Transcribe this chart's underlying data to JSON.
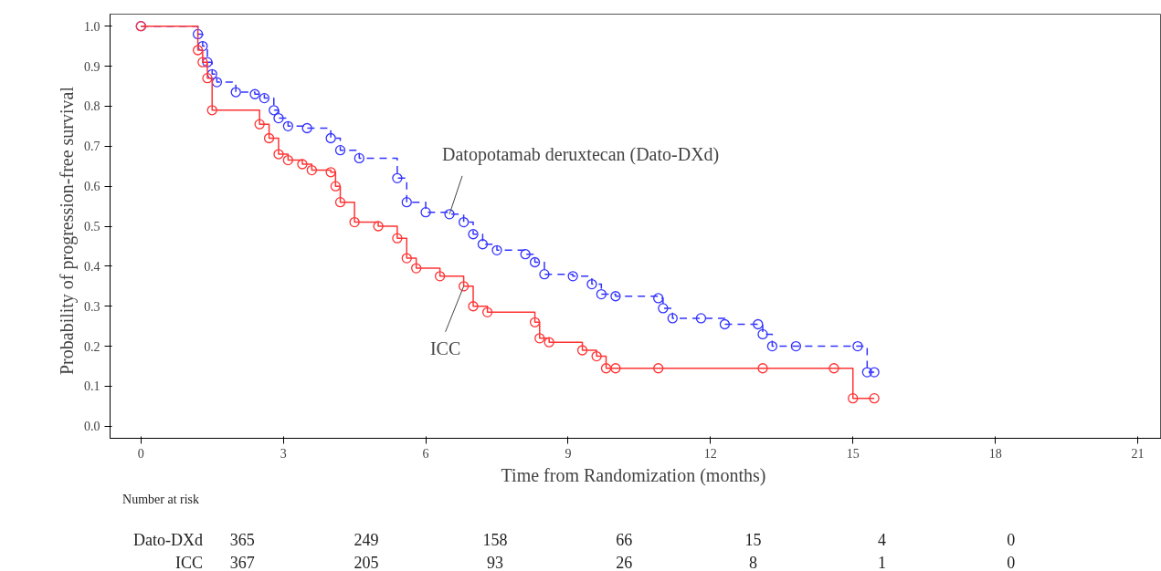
{
  "chart_data": {
    "type": "step",
    "xlabel": "Time from Randomization  (months)",
    "ylabel": "Probability  of progression-free  survival",
    "xlim": [
      -0.65,
      21.5
    ],
    "ylim": [
      -0.03,
      1.03
    ],
    "xticks": [
      0,
      3,
      6,
      9,
      12,
      15,
      18,
      21
    ],
    "yticks": [
      {
        "value": 0,
        "label": "0.0"
      },
      {
        "value": 0.1,
        "label": "0.1"
      },
      {
        "value": 0.2,
        "label": "0.2"
      },
      {
        "value": 0.3,
        "label": "0.3"
      },
      {
        "value": 0.4,
        "label": "0.4"
      },
      {
        "value": 0.5,
        "label": "0.5"
      },
      {
        "value": 0.6,
        "label": "0.6"
      },
      {
        "value": 0.7,
        "label": "0.7"
      },
      {
        "value": 0.8,
        "label": "0.8"
      },
      {
        "value": 0.9,
        "label": "0.9"
      },
      {
        "value": 1,
        "label": "1.0"
      }
    ],
    "marker": "circle",
    "grid": false,
    "series": [
      {
        "name": "Datopotamab deruxtecan (Dato-DXd)",
        "color": "#3333ff",
        "line_style": "dashed",
        "x": [
          0,
          1.2,
          1.3,
          1.4,
          1.5,
          1.6,
          2.0,
          2.4,
          2.6,
          2.8,
          2.9,
          3.1,
          3.5,
          4.0,
          4.2,
          4.6,
          5.4,
          5.6,
          6.0,
          6.5,
          6.8,
          7.0,
          7.2,
          7.5,
          8.1,
          8.3,
          8.5,
          9.1,
          9.5,
          9.7,
          10.0,
          10.9,
          11.0,
          11.2,
          11.8,
          12.3,
          13.0,
          13.1,
          13.3,
          13.8,
          15.1,
          15.3,
          15.45
        ],
        "values": [
          1.0,
          0.98,
          0.95,
          0.91,
          0.88,
          0.86,
          0.835,
          0.83,
          0.82,
          0.79,
          0.77,
          0.75,
          0.745,
          0.72,
          0.69,
          0.67,
          0.62,
          0.56,
          0.535,
          0.53,
          0.51,
          0.48,
          0.455,
          0.44,
          0.43,
          0.41,
          0.38,
          0.375,
          0.355,
          0.33,
          0.325,
          0.32,
          0.295,
          0.27,
          0.27,
          0.255,
          0.255,
          0.23,
          0.2,
          0.2,
          0.2,
          0.135,
          0.135
        ]
      },
      {
        "name": "ICC",
        "color": "#ff3333",
        "line_style": "solid",
        "x": [
          0,
          1.2,
          1.3,
          1.4,
          1.5,
          2.5,
          2.7,
          2.9,
          3.1,
          3.4,
          3.6,
          4.0,
          4.1,
          4.2,
          4.5,
          5.0,
          5.4,
          5.6,
          5.8,
          6.3,
          6.8,
          7.0,
          7.3,
          8.3,
          8.4,
          8.6,
          9.3,
          9.6,
          9.8,
          10.0,
          10.9,
          13.1,
          14.6,
          15.0,
          15.45
        ],
        "values": [
          1.0,
          0.94,
          0.91,
          0.87,
          0.79,
          0.755,
          0.72,
          0.68,
          0.665,
          0.655,
          0.64,
          0.635,
          0.6,
          0.56,
          0.51,
          0.5,
          0.47,
          0.42,
          0.395,
          0.375,
          0.35,
          0.3,
          0.285,
          0.26,
          0.22,
          0.21,
          0.19,
          0.175,
          0.145,
          0.145,
          0.145,
          0.145,
          0.145,
          0.07,
          0.07
        ]
      }
    ],
    "annotations": [
      "Number at risk",
      "Dato-DXd",
      "365",
      "249",
      "158",
      "66",
      "15",
      "4",
      "0",
      "ICC",
      "367",
      "205",
      "93",
      "26",
      "8",
      "1",
      "0"
    ]
  }
}
